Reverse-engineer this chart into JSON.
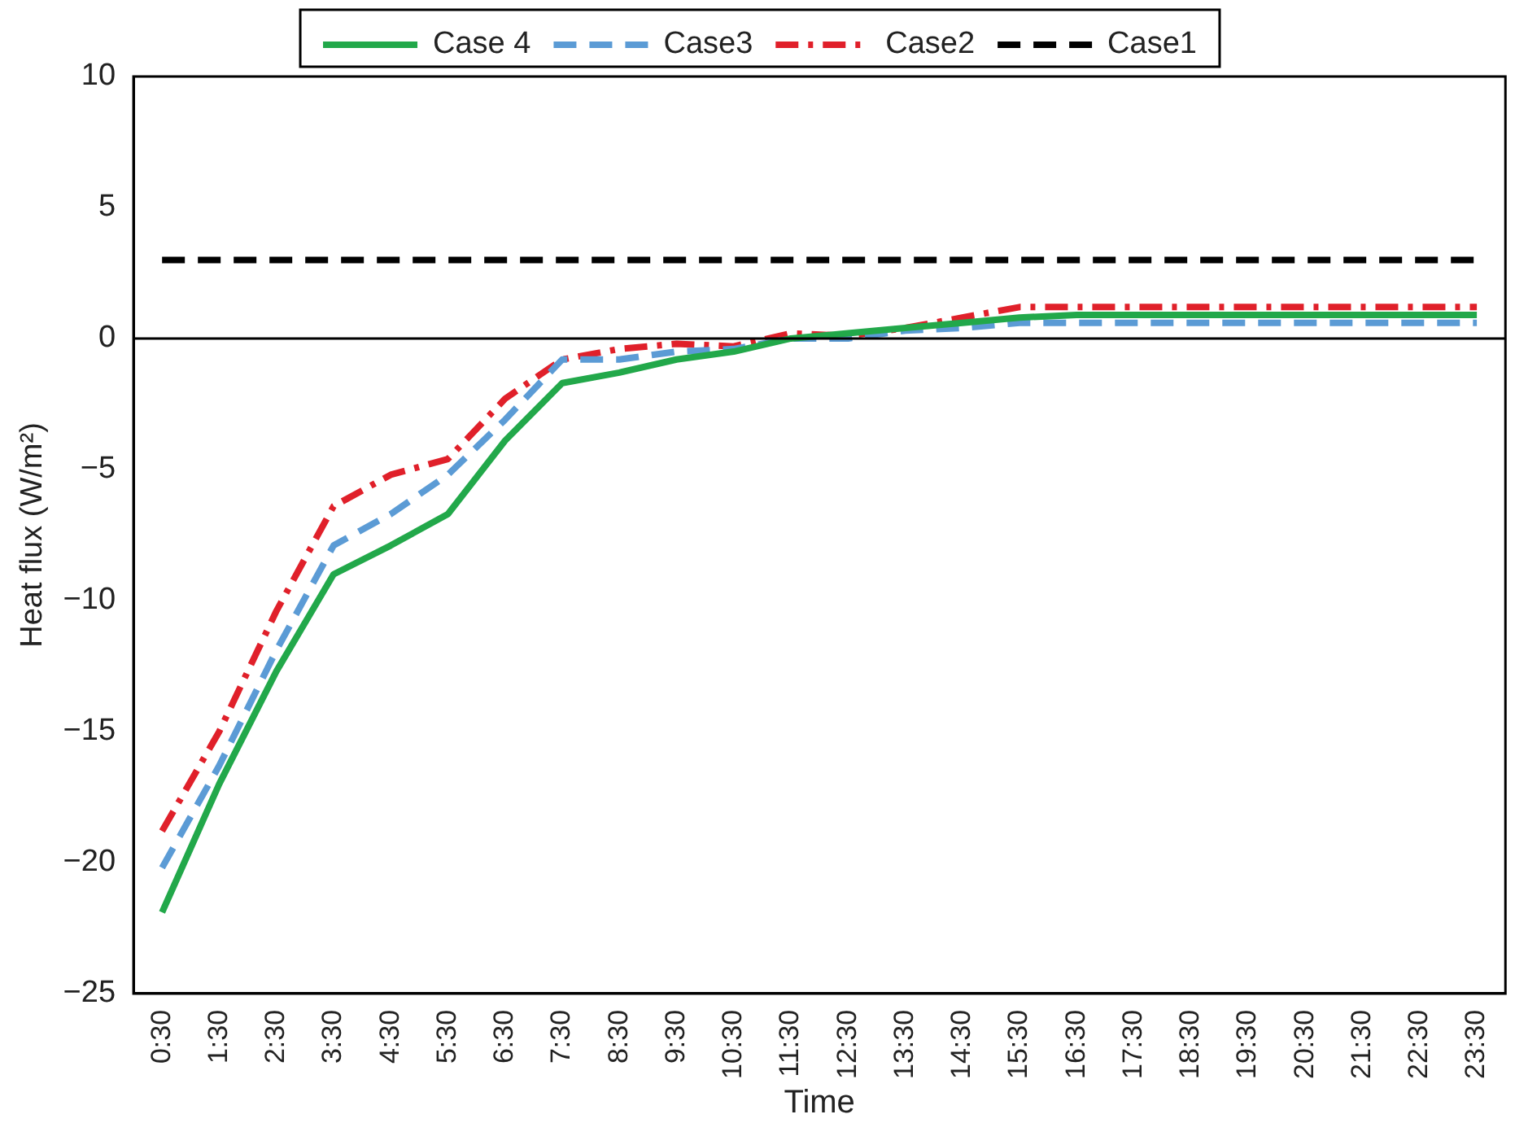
{
  "chart_data": {
    "type": "line",
    "xlabel": "Time",
    "ylabel": "Heat flux (W/m²)",
    "categories": [
      "0:30",
      "1:30",
      "2:30",
      "3:30",
      "4:30",
      "5:30",
      "6:30",
      "7:30",
      "8:30",
      "9:30",
      "10:30",
      "11:30",
      "12:30",
      "13:30",
      "14:30",
      "15:30",
      "16:30",
      "17:30",
      "18:30",
      "19:30",
      "20:30",
      "21:30",
      "22:30",
      "23:30"
    ],
    "series": [
      {
        "name": "Case 4",
        "color": "#22a84a",
        "line_style": "solid",
        "values": [
          -21.9,
          -17,
          -12.7,
          -9,
          -7.9,
          -6.7,
          -3.9,
          -1.7,
          -1.3,
          -0.8,
          -0.5,
          0,
          0.2,
          0.4,
          0.6,
          0.8,
          0.9,
          0.9,
          0.9,
          0.9,
          0.9,
          0.9,
          0.9,
          0.9
        ]
      },
      {
        "name": "Case3",
        "color": "#5b9bd5",
        "line_style": "dashed",
        "values": [
          -20.2,
          -16.3,
          -11.9,
          -7.9,
          -6.7,
          -5.2,
          -3.1,
          -0.8,
          -0.8,
          -0.5,
          -0.4,
          0,
          0,
          0.3,
          0.4,
          0.6,
          0.6,
          0.6,
          0.6,
          0.6,
          0.6,
          0.6,
          0.6,
          0.6
        ]
      },
      {
        "name": "Case2",
        "color": "#e0202a",
        "line_style": "dashdot",
        "values": [
          -18.8,
          -15,
          -10.4,
          -6.4,
          -5.2,
          -4.6,
          -2.3,
          -0.8,
          -0.4,
          -0.2,
          -0.3,
          0.2,
          0.1,
          0.4,
          0.8,
          1.2,
          1.2,
          1.2,
          1.2,
          1.2,
          1.2,
          1.2,
          1.2,
          1.2
        ]
      },
      {
        "name": "Case1",
        "color": "#000000",
        "line_style": "dashed",
        "values": [
          3,
          3,
          3,
          3,
          3,
          3,
          3,
          3,
          3,
          3,
          3,
          3,
          3,
          3,
          3,
          3,
          3,
          3,
          3,
          3,
          3,
          3,
          3,
          3
        ]
      }
    ],
    "ylim": [
      -25,
      10
    ],
    "yticks": [
      {
        "value": -25,
        "label": "−25"
      },
      {
        "value": -20,
        "label": "−20"
      },
      {
        "value": -15,
        "label": "−15"
      },
      {
        "value": -10,
        "label": "−10"
      },
      {
        "value": -5,
        "label": "−5"
      },
      0,
      5,
      10
    ],
    "grid": false,
    "legend": "top",
    "marker": "none"
  }
}
